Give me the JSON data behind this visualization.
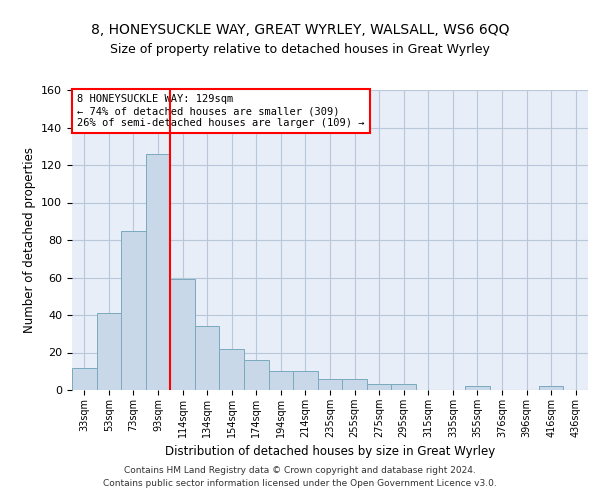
{
  "title": "8, HONEYSUCKLE WAY, GREAT WYRLEY, WALSALL, WS6 6QQ",
  "subtitle": "Size of property relative to detached houses in Great Wyrley",
  "xlabel": "Distribution of detached houses by size in Great Wyrley",
  "ylabel": "Number of detached properties",
  "bins": [
    "33sqm",
    "53sqm",
    "73sqm",
    "93sqm",
    "114sqm",
    "134sqm",
    "154sqm",
    "174sqm",
    "194sqm",
    "214sqm",
    "235sqm",
    "255sqm",
    "275sqm",
    "295sqm",
    "315sqm",
    "335sqm",
    "355sqm",
    "376sqm",
    "396sqm",
    "416sqm",
    "436sqm"
  ],
  "bar_heights": [
    12,
    41,
    85,
    126,
    59,
    34,
    22,
    16,
    10,
    10,
    6,
    6,
    3,
    3,
    0,
    0,
    2,
    0,
    0,
    2,
    0
  ],
  "bar_color": "#c8d8e8",
  "bar_edge_color": "#7aaabf",
  "grid_color": "#b8c8d8",
  "bg_color": "#e8eef8",
  "vline_color": "red",
  "annotation_text": "8 HONEYSUCKLE WAY: 129sqm\n← 74% of detached houses are smaller (309)\n26% of semi-detached houses are larger (109) →",
  "annotation_box_color": "white",
  "annotation_box_edge": "red",
  "ylim": [
    0,
    160
  ],
  "yticks": [
    0,
    20,
    40,
    60,
    80,
    100,
    120,
    140,
    160
  ],
  "footer1": "Contains HM Land Registry data © Crown copyright and database right 2024.",
  "footer2": "Contains public sector information licensed under the Open Government Licence v3.0."
}
